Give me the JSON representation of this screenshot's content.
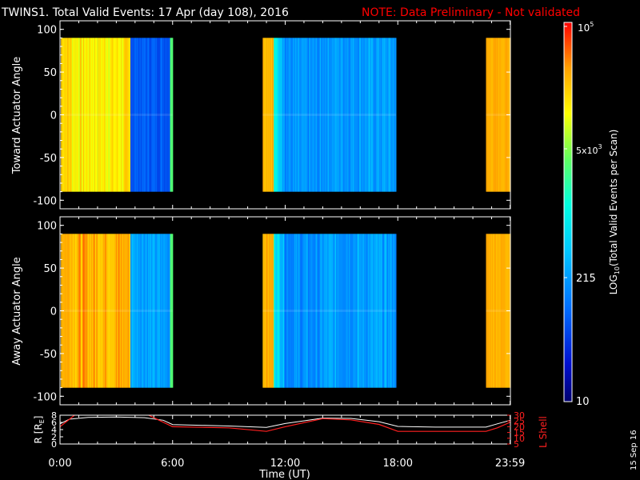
{
  "header": {
    "title": "TWINS1. Total Valid Events: 17 Apr (day 108), 2016",
    "note": "NOTE: Data Preliminary - Not validated"
  },
  "colors": {
    "background": "#000000",
    "note": "#ff0000",
    "axes": "#ffffff",
    "r_line": "#ffffff",
    "lshell_line": "#ff2020"
  },
  "colorbar": {
    "label": "LOG10(Total Valid Events per Scan)",
    "label_base": "LOG",
    "label_sub": "10",
    "label_rest": "(Total Valid Events per Scan)",
    "tick_top_base": "10",
    "tick_top_exp": "5",
    "tick_mid_mant": "5x10",
    "tick_mid_exp": "3",
    "tick_low": "215",
    "tick_bottom": "10",
    "scale": "log",
    "range": [
      10,
      100000
    ]
  },
  "footer": {
    "date_stamp": "15 Sep 16"
  },
  "chart_data": [
    {
      "type": "heatmap",
      "panel": "toward",
      "ylabel": "Toward Actuator Angle",
      "ylim": [
        -110,
        110
      ],
      "yticks": [
        "100",
        "50",
        "0",
        "-50",
        "-100"
      ],
      "xlim": [
        0,
        24
      ],
      "data_angle_range": [
        -90,
        90
      ],
      "segments": [
        {
          "start": 0.05,
          "end": 3.75,
          "level": "high (orange/yellow)"
        },
        {
          "start": 3.75,
          "end": 6.0,
          "level": "low (blue)"
        },
        {
          "start": 10.8,
          "end": 17.9,
          "level": "low-medium (cyan/blue)"
        },
        {
          "start": 22.7,
          "end": 24.0,
          "level": "high (orange)"
        }
      ]
    },
    {
      "type": "heatmap",
      "panel": "away",
      "ylabel": "Away Actuator Angle",
      "ylim": [
        -110,
        110
      ],
      "yticks": [
        "100",
        "50",
        "0",
        "-50",
        "-100"
      ],
      "xlim": [
        0,
        24
      ],
      "data_angle_range": [
        -90,
        90
      ],
      "segments": [
        {
          "start": 0.05,
          "end": 3.75,
          "level": "high (orange)"
        },
        {
          "start": 3.75,
          "end": 6.0,
          "level": "low-medium (cyan)"
        },
        {
          "start": 10.8,
          "end": 17.9,
          "level": "low-medium (cyan/blue)"
        },
        {
          "start": 22.7,
          "end": 24.0,
          "level": "high (orange)"
        }
      ]
    },
    {
      "type": "line",
      "panel": "orbit",
      "ylabel": "R [RE]",
      "ylabel_base": "R [R",
      "ylabel_sub": "E",
      "ylabel_end": "]",
      "ylabel2": "L Shell",
      "ylim": [
        0,
        8
      ],
      "yticks": [
        "8",
        "6",
        "4",
        "2",
        "0"
      ],
      "ylim2": [
        5,
        30
      ],
      "yticks2": [
        "30",
        "25",
        "20",
        "15",
        "10",
        "5"
      ],
      "xlabel": "Time (UT)",
      "xticks": [
        "0:00",
        "6:00",
        "12:00",
        "18:00",
        "23:59"
      ],
      "xlim": [
        0,
        24
      ],
      "series": [
        {
          "role": "R",
          "x": [
            0,
            0.5,
            1.5,
            3,
            4.5,
            5.5,
            6.0,
            9,
            11.0,
            12,
            14,
            15.5,
            17.0,
            18.0,
            20,
            22.7,
            23.3,
            24
          ],
          "y": [
            5.6,
            6.9,
            7.4,
            7.5,
            7.3,
            6.6,
            5.4,
            5.0,
            4.6,
            5.7,
            7.2,
            7.1,
            6.2,
            4.9,
            4.7,
            4.7,
            5.6,
            6.6
          ]
        },
        {
          "role": "L",
          "x": [
            [
              0,
              0.85
            ],
            [
              4.6,
              6.0,
              9,
              11.0,
              12,
              14,
              15.5,
              17.0,
              18.0,
              20,
              22.7,
              23.3,
              24
            ]
          ],
          "y": [
            [
              20,
              31
            ],
            [
              31,
              20,
              19,
              16,
              20,
              27,
              26,
              22,
              16,
              16,
              16,
              19,
              24
            ]
          ]
        }
      ]
    }
  ]
}
